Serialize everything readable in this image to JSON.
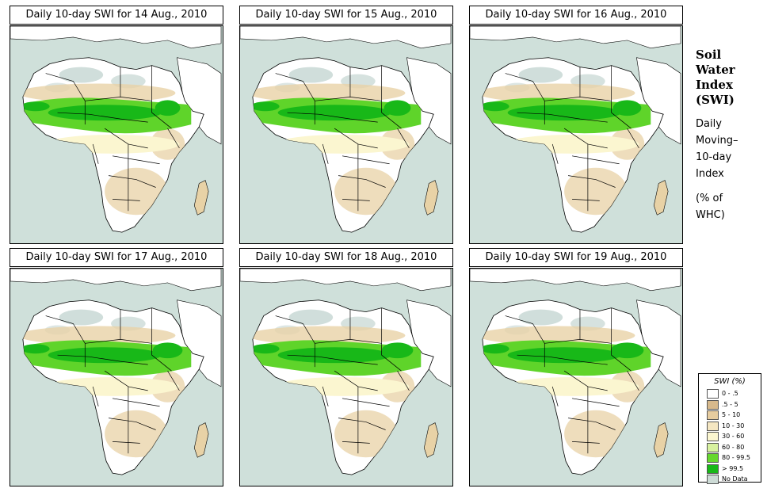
{
  "panels": [
    {
      "title": "Daily 10-day SWI for 14 Aug., 2010"
    },
    {
      "title": "Daily 10-day SWI for 15 Aug., 2010"
    },
    {
      "title": "Daily 10-day SWI for 16 Aug., 2010"
    },
    {
      "title": "Daily 10-day SWI for 17 Aug., 2010"
    },
    {
      "title": "Daily 10-day SWI for 18 Aug., 2010"
    },
    {
      "title": "Daily 10-day SWI for 19 Aug., 2010"
    }
  ],
  "side_title": {
    "main": [
      "Soil",
      "Water",
      "Index",
      "(SWI)"
    ],
    "sub": [
      "Daily",
      "Moving–",
      "10-day",
      "Index"
    ],
    "unit": [
      "(% of",
      "WHC)"
    ]
  },
  "legend": {
    "title": "SWI (%)",
    "items": [
      {
        "label": "0 - .5",
        "color": "#ffffff"
      },
      {
        "label": ".5 - 5",
        "color": "#d7b98c"
      },
      {
        "label": "5 - 10",
        "color": "#e6cc9f"
      },
      {
        "label": "10 - 30",
        "color": "#f4e6c2"
      },
      {
        "label": "30 - 60",
        "color": "#fbf6d0"
      },
      {
        "label": "60 - 80",
        "color": "#d8f2a0"
      },
      {
        "label": "80 - 99.5",
        "color": "#66d82e"
      },
      {
        "label": "> 99.5",
        "color": "#18b818"
      },
      {
        "label": "No Data",
        "color": "#cddbd6"
      }
    ]
  },
  "colors": {
    "ocean": "#cfe0da",
    "land": "#ffffff",
    "dry": "#e8d2a6",
    "moist": "#fbf6d0",
    "wet": "#5fd42a",
    "saturated": "#18b818",
    "nodata": "#c4d6d2"
  }
}
